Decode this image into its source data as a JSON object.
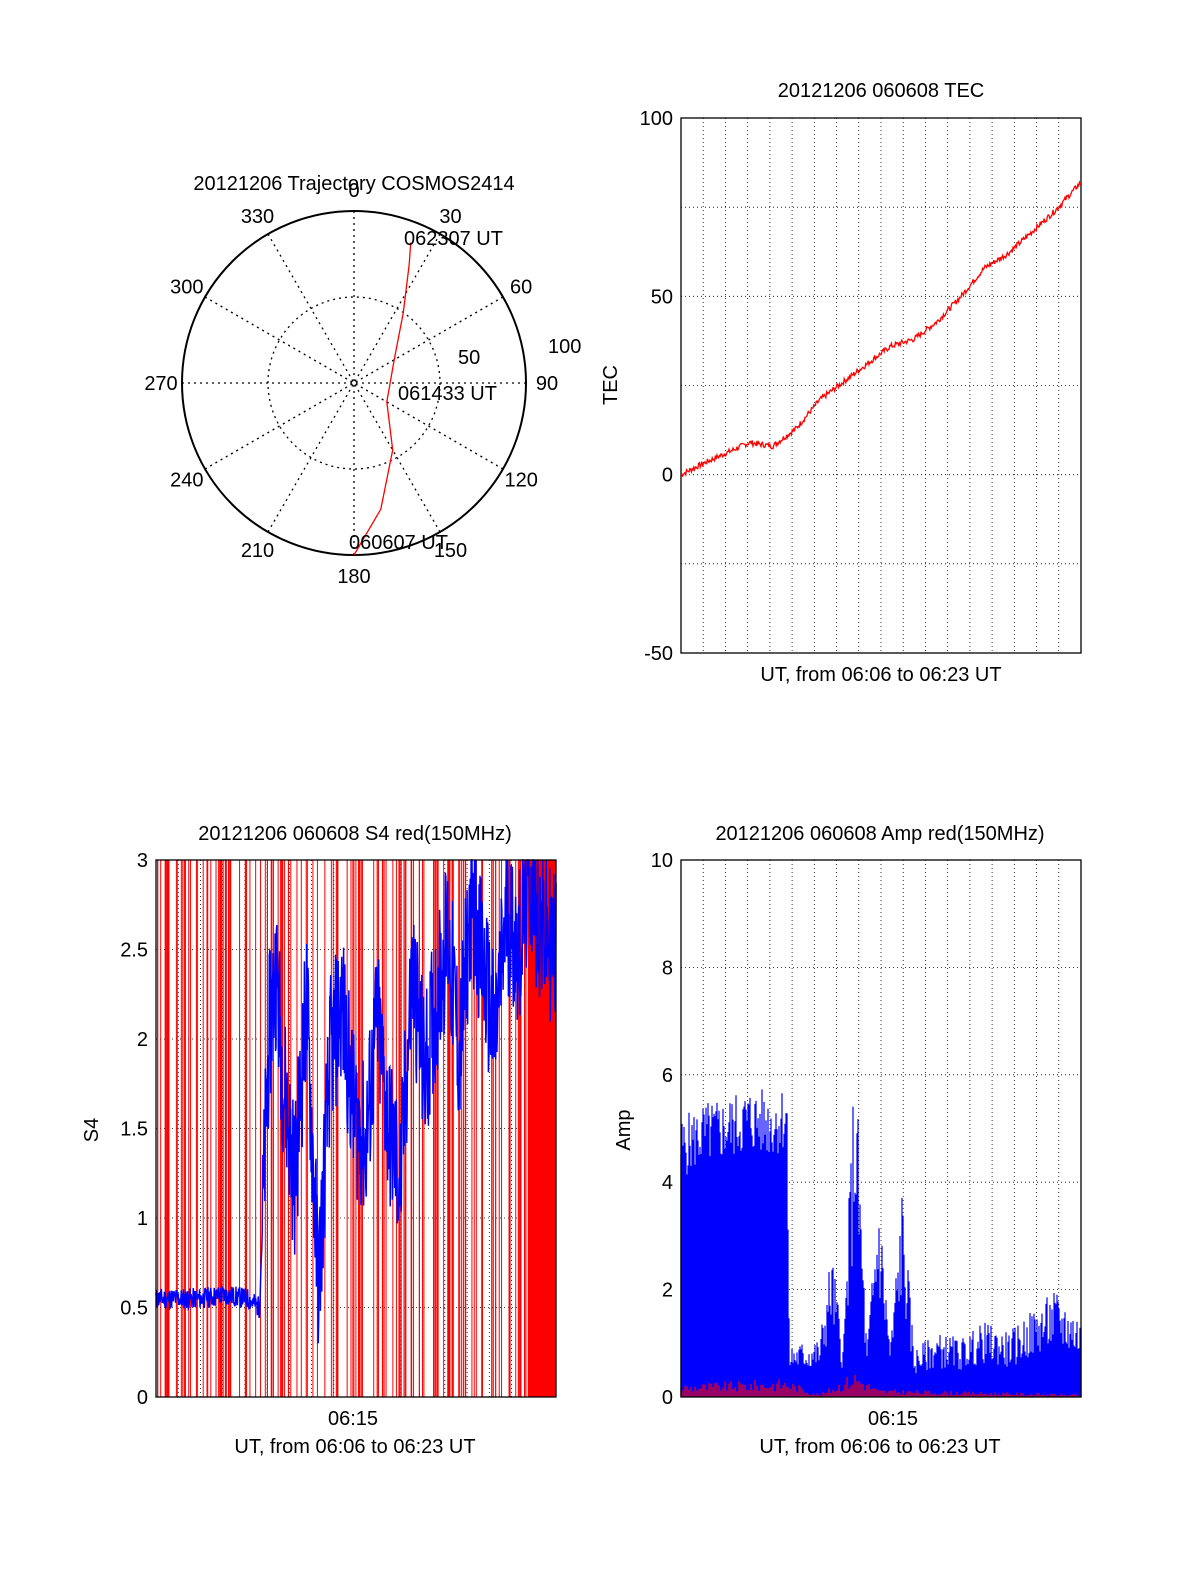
{
  "chart_data": [
    {
      "type": "polar",
      "title": "20121206 Trajectory COSMOS2414",
      "azimuth_labels": [
        "0",
        "30",
        "60",
        "90",
        "120",
        "150",
        "180",
        "210",
        "240",
        "270",
        "300",
        "330"
      ],
      "radial_labels": [
        "50",
        "100"
      ],
      "trajectory_labels": [
        "062307 UT",
        "061433 UT",
        "060607 UT"
      ],
      "trajectory": [
        {
          "az": 180,
          "zd": 100
        },
        {
          "az": 168,
          "zd": 75
        },
        {
          "az": 150,
          "zd": 45
        },
        {
          "az": 120,
          "zd": 22
        },
        {
          "az": 60,
          "zd": 27
        },
        {
          "az": 35,
          "zd": 50
        },
        {
          "az": 25,
          "zd": 76
        },
        {
          "az": 22,
          "zd": 88
        }
      ],
      "line_color": "#ff0000"
    },
    {
      "type": "line",
      "title": "20121206 060608 TEC",
      "ylabel": "TEC",
      "xlabel": "UT, from 06:06 to 06:23 UT",
      "ylim": [
        -50,
        100
      ],
      "yticks": [
        "100",
        "50",
        "0",
        "-50"
      ],
      "xlim_min": [
        6.1,
        23.1
      ],
      "series": [
        {
          "color": "#ff0000",
          "x": [
            6.1,
            7,
            8,
            9,
            10,
            11,
            12,
            13,
            14,
            15,
            16,
            17,
            18,
            19,
            20,
            21,
            22,
            23.1
          ],
          "y": [
            0,
            3,
            6,
            9,
            8,
            13,
            21,
            26,
            31,
            36,
            38,
            43,
            50,
            58,
            62,
            68,
            74,
            82
          ]
        }
      ]
    },
    {
      "type": "line",
      "title": "20121206 060608 S4 red(150MHz)",
      "ylabel": "S4",
      "xlabel": "UT, from 06:06 to 06:23 UT",
      "xtick_labels": [
        "06:15"
      ],
      "ylim": [
        0,
        3
      ],
      "yticks": [
        "3",
        "2.5",
        "2",
        "1.5",
        "1",
        "0.5",
        "0"
      ],
      "series": [
        {
          "color": "#0000ff",
          "x": [
            6.1,
            7,
            8,
            9,
            10,
            10.5,
            10.9,
            11.2,
            11.5,
            12,
            12.5,
            13,
            13.5,
            14,
            14.5,
            15,
            15.5,
            16,
            16.5,
            17,
            17.5,
            18,
            18.5,
            19,
            19.5,
            20,
            20.5,
            21,
            21.5,
            22,
            22.5,
            23.1
          ],
          "y": [
            0.55,
            0.55,
            0.55,
            0.57,
            0.55,
            0.5,
            2.0,
            2.4,
            1.8,
            1.2,
            2.2,
            0.6,
            1.9,
            2.2,
            1.6,
            1.4,
            2.1,
            1.5,
            1.2,
            2.4,
            1.8,
            2.2,
            2.6,
            1.9,
            2.8,
            2.4,
            2.0,
            2.7,
            2.5,
            2.9,
            2.6,
            2.5
          ]
        },
        {
          "color": "#ff0000",
          "type": "spikes",
          "x_from": 6.1,
          "x_to": 23.1,
          "y_max": 3
        }
      ]
    },
    {
      "type": "line",
      "title": "20121206 060608 Amp red(150MHz)",
      "ylabel": "Amp",
      "xlabel": "UT, from 06:06 to 06:23 UT",
      "xtick_labels": [
        "06:15"
      ],
      "ylim": [
        0,
        10
      ],
      "yticks": [
        "10",
        "8",
        "6",
        "4",
        "2",
        "0"
      ],
      "series": [
        {
          "color": "#0000ff",
          "x": [
            6.1,
            7,
            8,
            9,
            10,
            10.6,
            10.7,
            12,
            12.5,
            13,
            13.5,
            14,
            14.5,
            15,
            15.5,
            16,
            17,
            18,
            19,
            20,
            21,
            22,
            23.1
          ],
          "y": [
            5.2,
            5.5,
            5.6,
            5.8,
            5.7,
            5.9,
            1.0,
            1.1,
            2.8,
            1.0,
            6.7,
            0.9,
            4.0,
            1.0,
            4.0,
            0.9,
            1.2,
            1.1,
            1.4,
            1.2,
            1.6,
            2.0,
            1.5
          ]
        },
        {
          "color": "#ff0000",
          "x": [
            6.1,
            10.6,
            12,
            13.5,
            14.5,
            23.1
          ],
          "y": [
            0.25,
            0.35,
            0.05,
            0.5,
            0.15,
            0.05
          ]
        }
      ]
    }
  ]
}
